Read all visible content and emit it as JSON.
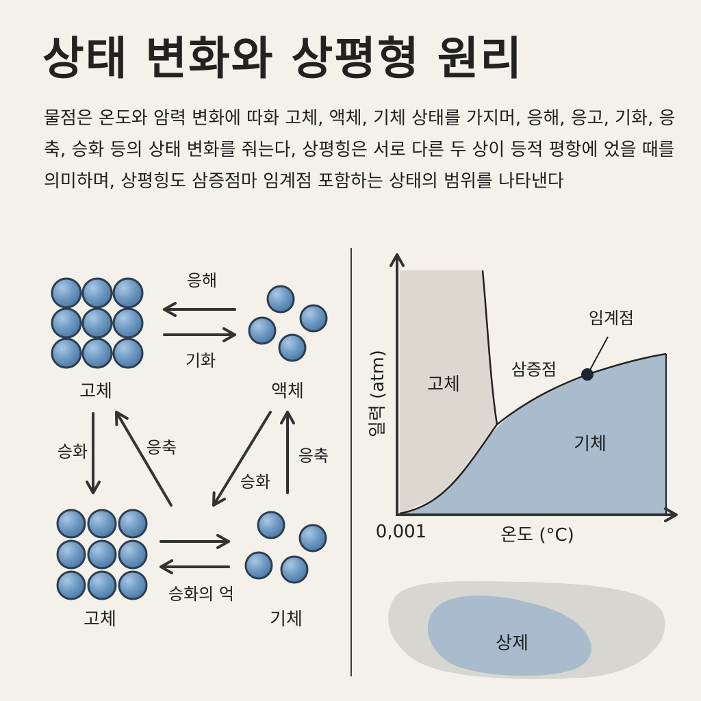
{
  "title": "상태 변화와 상평형 원리",
  "description": "물점은 온도와 암력 변화에 따화 고체, 액체, 기체 상태를 가지머, 응해, 응고, 기화, 응축, 승화 등의 상태 변화를 줘는다, 상평힝은 서로 다른 두 상이 등적 평항에 었을 때를 의미하며, 상평힝도 삼증점마 임계점 포함하는 상태의 범위를 나타낸다",
  "diagram": {
    "state_solid_top": "고체",
    "state_liquid": "액체",
    "state_solid_bottom": "고체",
    "state_gas": "기체",
    "arrow_melting": "응해",
    "arrow_vaporization": "기화",
    "arrow_sublimation_left": "승화",
    "arrow_condensation_left": "응축",
    "arrow_sublimation_right": "승화",
    "arrow_condensation_right": "응축",
    "arrow_deposition": "승화의 억"
  },
  "chart_data": {
    "type": "area",
    "xlabel": "온도 (°C)",
    "ylabel": "일력 (atm)",
    "origin_label": "0,001",
    "regions": [
      "고체",
      "기체"
    ],
    "annotations": [
      "삼증점",
      "임계점"
    ]
  },
  "blob_label": "상제",
  "colors": {
    "background": "#f4f1ea",
    "particle": "#6f9ac2",
    "gas_region": "#a9bccd",
    "solid_region": "#dcd8cf"
  }
}
